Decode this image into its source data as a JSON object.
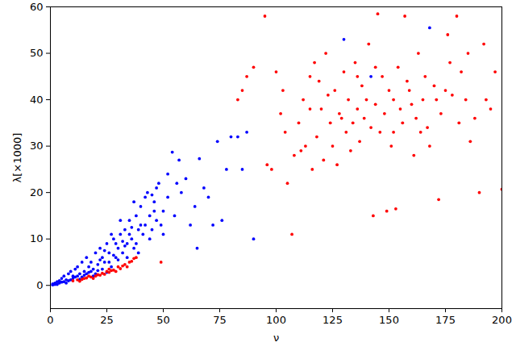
{
  "chart_data": {
    "type": "scatter",
    "x_label": "ν",
    "y_label": "λ[×1000]",
    "xlim": [
      0,
      200
    ],
    "ylim": [
      -5,
      60
    ],
    "xticks": [
      0,
      25,
      50,
      75,
      100,
      125,
      150,
      175,
      200
    ],
    "yticks": [
      0,
      10,
      20,
      30,
      40,
      50,
      60
    ],
    "marker": "circle",
    "series": [
      {
        "color": "#0000ff",
        "x": [
          1,
          2,
          3,
          4,
          5,
          6,
          7,
          8,
          9,
          10,
          11,
          12,
          13,
          14,
          15,
          16,
          17,
          18,
          19,
          20,
          21,
          22,
          23,
          24,
          25,
          26,
          27,
          28,
          29,
          30,
          31,
          32,
          33,
          34,
          35,
          36,
          37,
          38,
          39,
          40,
          41,
          42,
          43,
          44,
          45,
          46,
          47,
          48,
          50,
          52,
          54,
          55,
          57,
          58,
          60,
          62,
          64,
          66,
          68,
          70,
          72,
          74,
          76,
          78,
          80,
          83,
          85,
          87,
          90,
          130,
          142,
          168,
          3,
          5,
          7,
          9,
          11,
          13,
          15,
          17,
          19,
          21,
          23,
          25,
          8,
          10,
          12,
          14,
          16,
          18,
          20,
          22,
          24,
          26,
          28,
          30,
          32,
          34,
          36,
          38,
          40,
          44,
          46,
          50,
          52,
          56,
          6,
          4,
          2,
          1,
          27,
          29,
          31,
          33,
          35,
          37,
          39,
          42,
          47,
          49,
          65,
          45
        ],
        "y": [
          0.3,
          0.5,
          0.8,
          1,
          1.5,
          2,
          1.2,
          2.5,
          3,
          2,
          3.5,
          4,
          2.5,
          5,
          3,
          6,
          4,
          5,
          3.5,
          7,
          4.5,
          8,
          6,
          5,
          9,
          7,
          4,
          10,
          6,
          8,
          11,
          7,
          12,
          9,
          14,
          10,
          8,
          15,
          12,
          17,
          11,
          13,
          20,
          15,
          12,
          18,
          14,
          22,
          16,
          19,
          28.7,
          15,
          27,
          20,
          23,
          13,
          17,
          27.3,
          21,
          19,
          13,
          31,
          14,
          25,
          32,
          32,
          25,
          33,
          10,
          53,
          45,
          55.5,
          0.2,
          0.7,
          0.5,
          1.2,
          1.8,
          1.3,
          2.2,
          2.8,
          2,
          3.2,
          3.5,
          2.8,
          1,
          1.5,
          2,
          1.8,
          2.5,
          3,
          2.5,
          5.5,
          7.5,
          5,
          6.5,
          5.5,
          9.5,
          6,
          12.5,
          9,
          13,
          10,
          16,
          11,
          24,
          22,
          0.8,
          0.5,
          0.2,
          0.1,
          11,
          9,
          14,
          8.5,
          11,
          18,
          7,
          19,
          21,
          13,
          8,
          19.5
        ]
      },
      {
        "color": "#ff0000",
        "x": [
          10,
          12,
          14,
          15,
          16,
          18,
          19,
          20,
          21,
          22,
          23,
          24,
          25,
          26,
          27,
          28,
          29,
          30,
          31,
          32,
          33,
          34,
          35,
          36,
          37,
          38,
          49,
          17,
          13,
          26,
          83,
          85,
          87,
          90,
          95,
          96,
          98,
          100,
          102,
          104,
          105,
          107,
          108,
          110,
          112,
          113,
          115,
          116,
          118,
          120,
          121,
          122,
          124,
          125,
          126,
          127,
          128,
          130,
          131,
          132,
          133,
          134,
          135,
          136,
          137,
          138,
          139,
          140,
          141,
          142,
          143,
          144,
          145,
          146,
          147,
          148,
          149,
          150,
          151,
          152,
          153,
          154,
          155,
          156,
          157,
          158,
          160,
          161,
          162,
          163,
          164,
          165,
          166,
          167,
          168,
          170,
          172,
          173,
          175,
          176,
          178,
          180,
          181,
          182,
          184,
          186,
          188,
          190,
          192,
          193,
          195,
          197,
          200,
          115,
          119,
          123,
          129,
          136,
          144,
          152,
          159,
          171,
          185,
          177,
          103,
          111,
          117
        ],
        "y": [
          1,
          1.2,
          1.3,
          1.5,
          1.6,
          1.8,
          1.5,
          2,
          2.3,
          2.2,
          2.6,
          2.4,
          3,
          2.8,
          3.2,
          3.3,
          3,
          4,
          3.6,
          4.2,
          4.5,
          4,
          5,
          5.2,
          5.8,
          6,
          5,
          2,
          0.9,
          3.5,
          40,
          42,
          45,
          47,
          58,
          26,
          25,
          46,
          37,
          33,
          22,
          11,
          28,
          35,
          40,
          30,
          45,
          25,
          32,
          38,
          27,
          50,
          35,
          30,
          42,
          26,
          37,
          46,
          33,
          40,
          29,
          35,
          48,
          38,
          31,
          43,
          36,
          40,
          52,
          34,
          15,
          39,
          58.5,
          33,
          45,
          37,
          16,
          42,
          30,
          40,
          16.5,
          47,
          38,
          35,
          58,
          44,
          39,
          28,
          36,
          50,
          33,
          40,
          45,
          34,
          30,
          43,
          18.5,
          37,
          42,
          54,
          41,
          58,
          35,
          46,
          40,
          31,
          36,
          20,
          52,
          40,
          38,
          46,
          20.7,
          38,
          44,
          41,
          36,
          45,
          47,
          33,
          42,
          40,
          50,
          48,
          42,
          29,
          48
        ]
      }
    ]
  }
}
